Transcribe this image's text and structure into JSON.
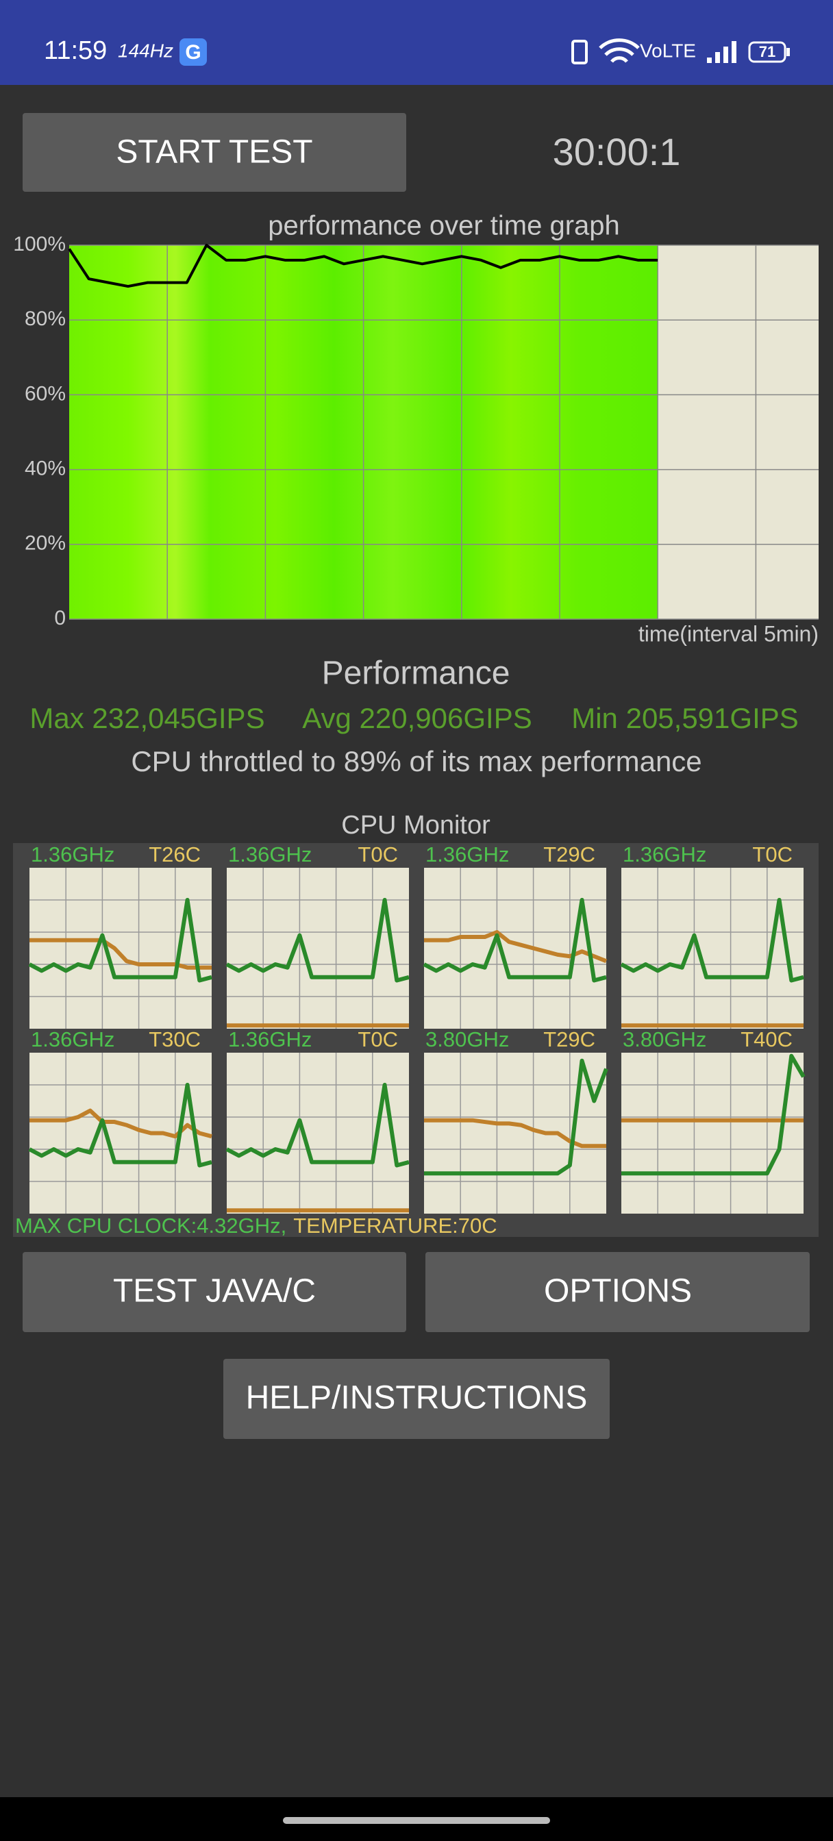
{
  "status_bar": {
    "time": "11:59",
    "refresh_rate": "144Hz",
    "network": "VoLTE",
    "battery": "71"
  },
  "controls": {
    "start_button": "START TEST",
    "timer": "30:00:1"
  },
  "chart_data": {
    "type": "line",
    "title": "performance over time graph",
    "x_label": "time(interval 5min)",
    "ylim": [
      0,
      100
    ],
    "yticks": [
      0,
      {
        "value": 20,
        "label": "20%"
      },
      {
        "value": 40,
        "label": "40%"
      },
      {
        "value": 60,
        "label": "60%"
      },
      {
        "value": 80,
        "label": "80%"
      },
      {
        "value": 100,
        "label": "100%"
      }
    ],
    "grid": true,
    "series": [
      {
        "color": "#000000",
        "values": [
          99,
          91,
          90,
          89,
          90,
          90,
          90,
          100,
          96,
          96,
          97,
          96,
          96,
          97,
          95,
          96,
          97,
          96,
          95,
          96,
          97,
          96,
          94,
          96,
          96,
          97,
          96,
          96,
          97,
          96,
          96
        ]
      }
    ]
  },
  "performance": {
    "title": "Performance",
    "max": "Max 232,045GIPS",
    "avg": "Avg 220,906GIPS",
    "min": "Min 205,591GIPS",
    "summary": "CPU throttled to 89% of its max performance"
  },
  "cpu_monitor": {
    "title": "CPU Monitor",
    "cores": [
      {
        "frequency": "1.36GHz",
        "temperature": "T26C",
        "frequency_values": [
          40,
          36,
          40,
          36,
          40,
          38,
          58,
          32,
          32,
          32,
          32,
          32,
          32,
          80,
          30,
          32
        ],
        "temperature_values": [
          55,
          55,
          55,
          55,
          55,
          55,
          55,
          50,
          42,
          40,
          40,
          40,
          40,
          38,
          38,
          38
        ]
      },
      {
        "frequency": "1.36GHz",
        "temperature": "T0C",
        "frequency_values": [
          40,
          36,
          40,
          36,
          40,
          38,
          58,
          32,
          32,
          32,
          32,
          32,
          32,
          80,
          30,
          32
        ],
        "temperature_values": [
          2,
          2,
          2,
          2,
          2,
          2,
          2,
          2,
          2,
          2,
          2,
          2,
          2,
          2,
          2,
          2
        ]
      },
      {
        "frequency": "1.36GHz",
        "temperature": "T29C",
        "frequency_values": [
          40,
          36,
          40,
          36,
          40,
          38,
          58,
          32,
          32,
          32,
          32,
          32,
          32,
          80,
          30,
          32
        ],
        "temperature_values": [
          55,
          55,
          55,
          57,
          57,
          57,
          60,
          54,
          52,
          50,
          48,
          46,
          45,
          48,
          45,
          42
        ]
      },
      {
        "frequency": "1.36GHz",
        "temperature": "T0C",
        "frequency_values": [
          40,
          36,
          40,
          36,
          40,
          38,
          58,
          32,
          32,
          32,
          32,
          32,
          32,
          80,
          30,
          32
        ],
        "temperature_values": [
          2,
          2,
          2,
          2,
          2,
          2,
          2,
          2,
          2,
          2,
          2,
          2,
          2,
          2,
          2,
          2
        ]
      },
      {
        "frequency": "1.36GHz",
        "temperature": "T30C",
        "frequency_values": [
          40,
          36,
          40,
          36,
          40,
          38,
          58,
          32,
          32,
          32,
          32,
          32,
          32,
          80,
          30,
          32
        ],
        "temperature_values": [
          58,
          58,
          58,
          58,
          60,
          64,
          57,
          57,
          55,
          52,
          50,
          50,
          48,
          55,
          50,
          48
        ]
      },
      {
        "frequency": "1.36GHz",
        "temperature": "T0C",
        "frequency_values": [
          40,
          36,
          40,
          36,
          40,
          38,
          58,
          32,
          32,
          32,
          32,
          32,
          32,
          80,
          30,
          32
        ],
        "temperature_values": [
          2,
          2,
          2,
          2,
          2,
          2,
          2,
          2,
          2,
          2,
          2,
          2,
          2,
          2,
          2,
          2
        ]
      },
      {
        "frequency": "3.80GHz",
        "temperature": "T29C",
        "frequency_values": [
          25,
          25,
          25,
          25,
          25,
          25,
          25,
          25,
          25,
          25,
          25,
          25,
          30,
          95,
          70,
          90
        ],
        "temperature_values": [
          58,
          58,
          58,
          58,
          58,
          57,
          56,
          56,
          55,
          52,
          50,
          50,
          45,
          42,
          42,
          42
        ]
      },
      {
        "frequency": "3.80GHz",
        "temperature": "T40C",
        "frequency_values": [
          25,
          25,
          25,
          25,
          25,
          25,
          25,
          25,
          25,
          25,
          25,
          25,
          25,
          40,
          98,
          85
        ],
        "temperature_values": [
          58,
          58,
          58,
          58,
          58,
          58,
          58,
          58,
          58,
          58,
          58,
          58,
          58,
          58,
          58,
          58
        ]
      }
    ],
    "max_clock": "MAX CPU CLOCK:4.32GHz,",
    "max_temperature": "TEMPERATURE:70C"
  },
  "buttons": {
    "test": "TEST JAVA/C",
    "options": "OPTIONS",
    "help": "HELP/INSTRUCTIONS"
  }
}
